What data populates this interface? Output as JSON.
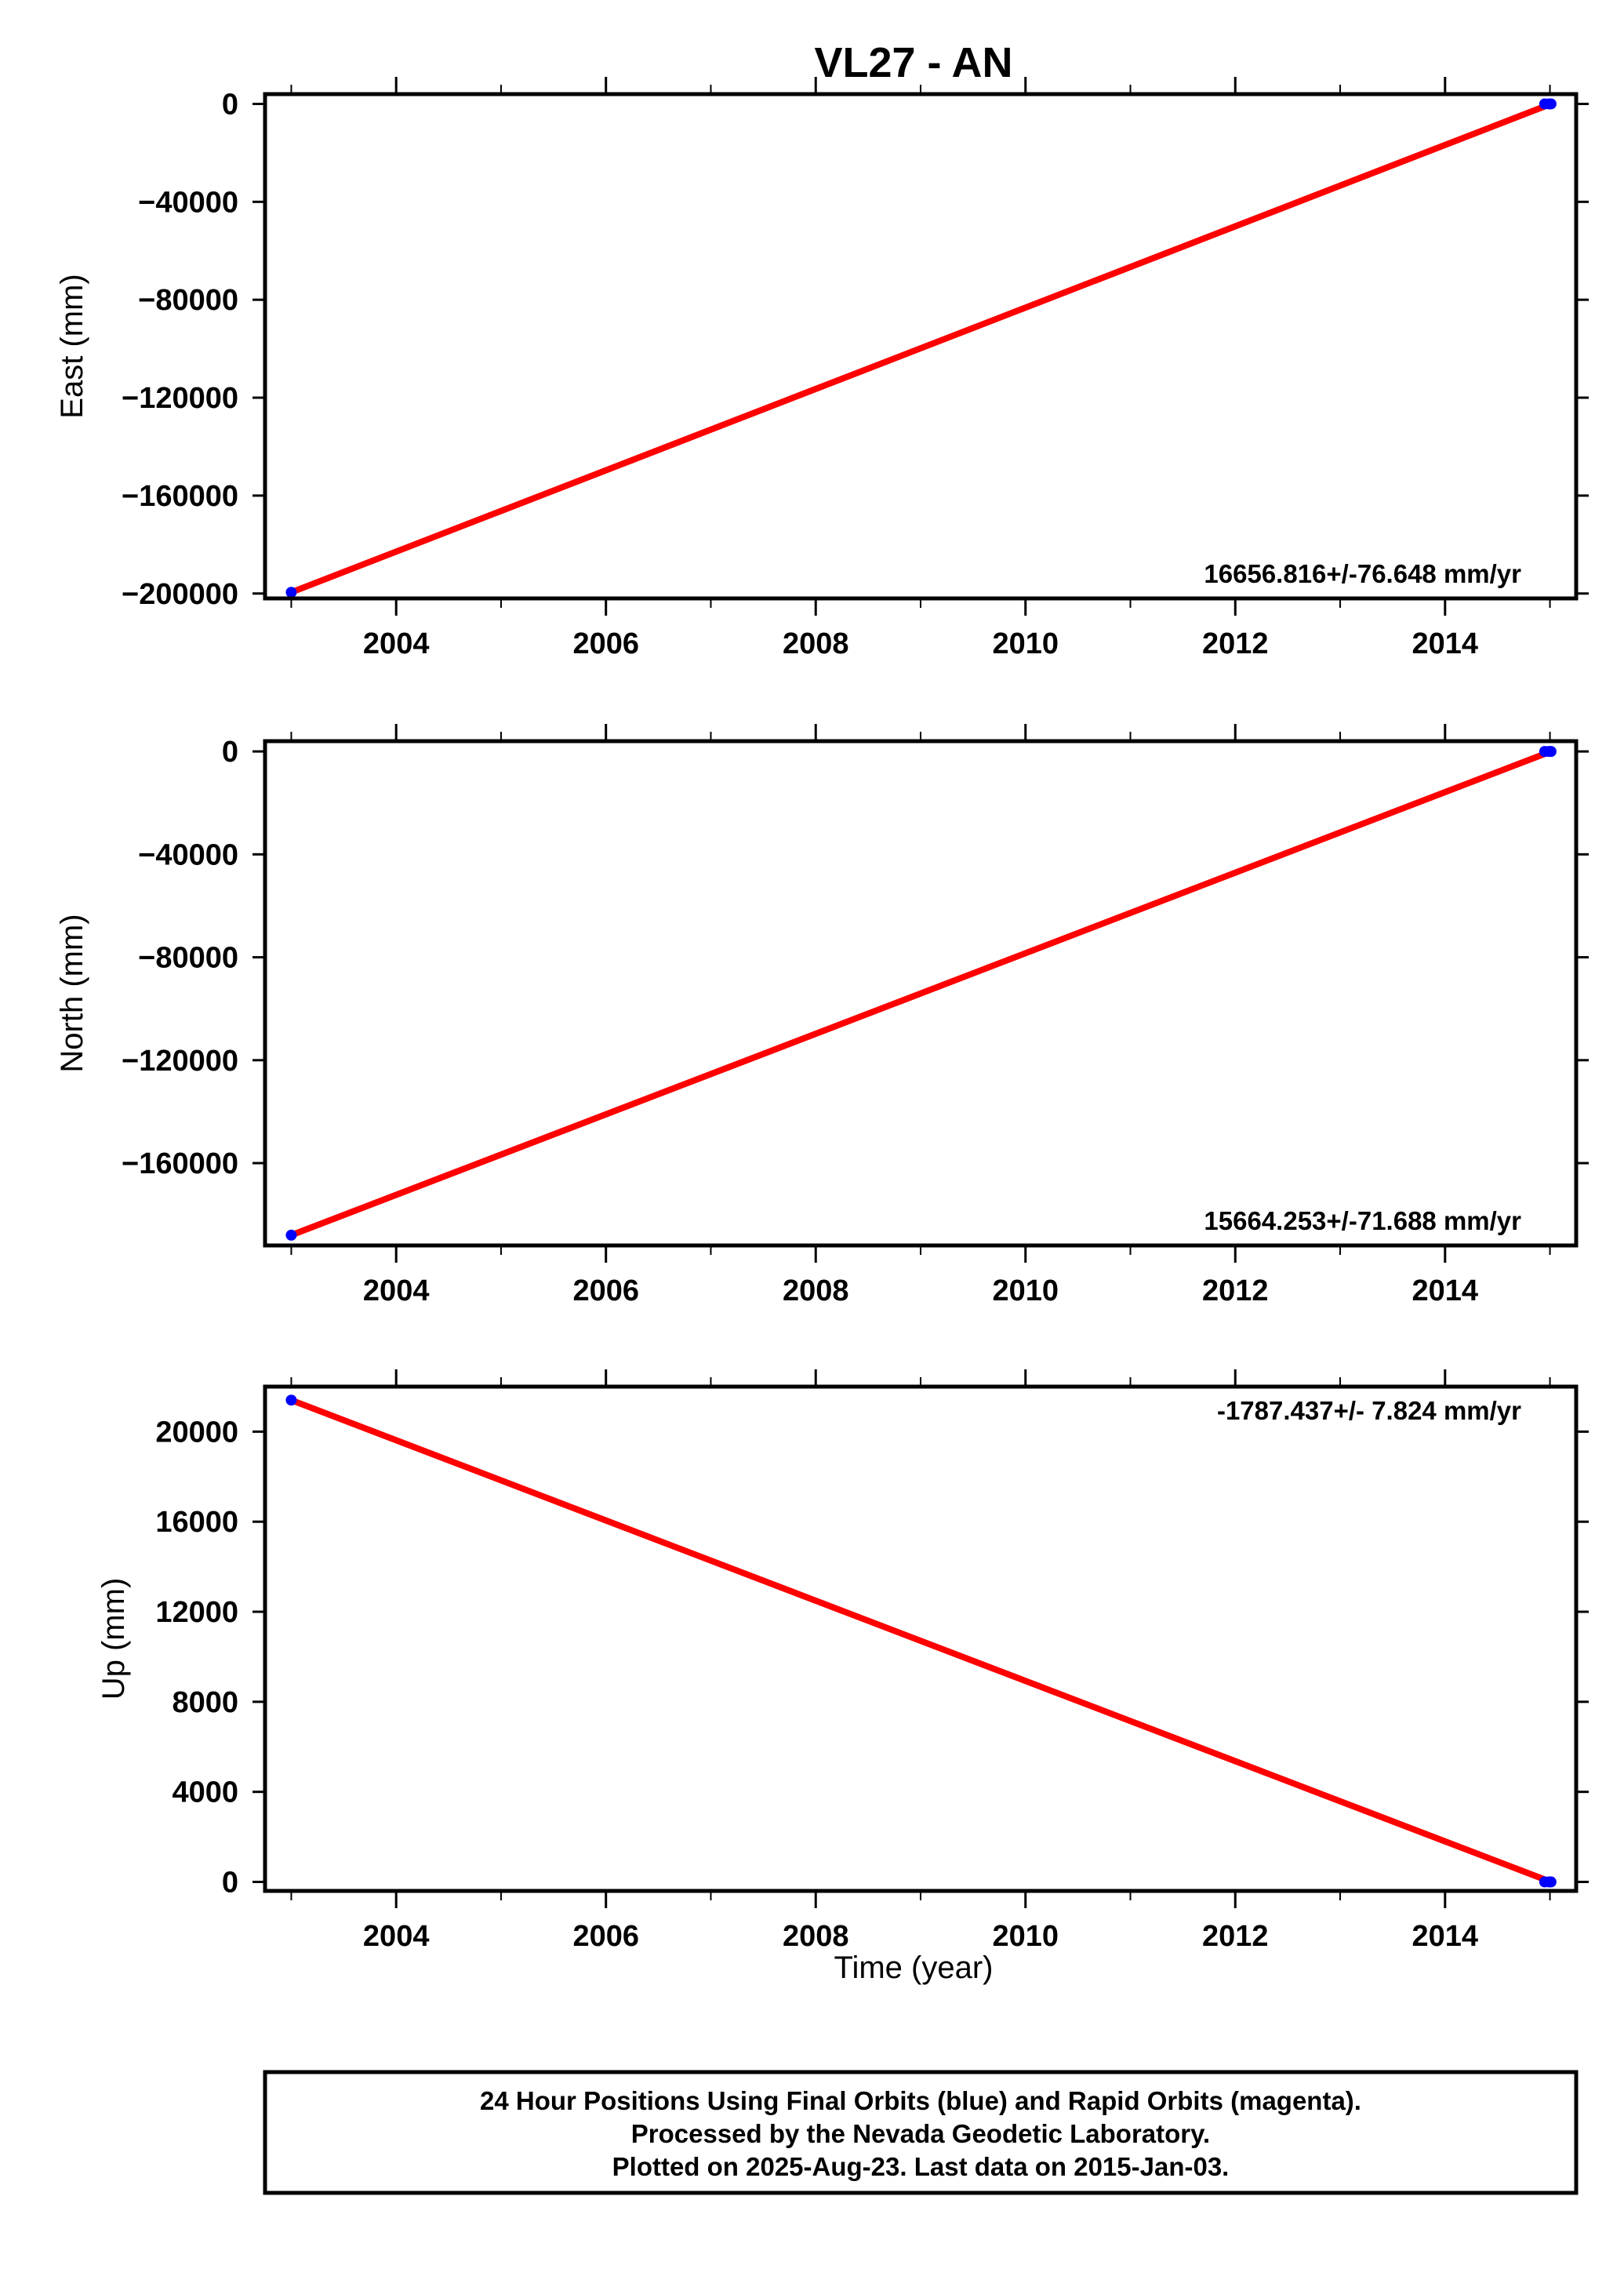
{
  "title": "VL27 - AN",
  "xlabel": "Time (year)",
  "footer": {
    "line1": "24 Hour Positions Using Final Orbits (blue) and Rapid Orbits (magenta).",
    "line2": "Processed by the Nevada Geodetic Laboratory.",
    "line3": "Plotted on 2025-Aug-23. Last data on 2015-Jan-03."
  },
  "colors": {
    "final_orbits": "#0000ff",
    "rapid_orbits": "#ff00ff",
    "trend_line": "#ff0000",
    "frame": "#000000"
  },
  "chart_data": [
    {
      "type": "line",
      "name": "east",
      "ylabel": "East (mm)",
      "rate_label": "16656.816+/-76.648 mm/yr",
      "xlim": [
        2002.75,
        2015.25
      ],
      "ylim": [
        -202000,
        4000
      ],
      "xticks": [
        2004,
        2006,
        2008,
        2010,
        2012,
        2014
      ],
      "yticks": [
        0,
        -40000,
        -80000,
        -120000,
        -160000,
        -200000
      ],
      "ytick_labels": [
        "0",
        "−40000",
        "−80000",
        "−120000",
        "−160000",
        "−200000"
      ],
      "points": [
        {
          "x": 2003.0,
          "y": -199500
        },
        {
          "x": 2014.95,
          "y": 0
        },
        {
          "x": 2014.99,
          "y": 0
        },
        {
          "x": 2015.01,
          "y": 0
        }
      ],
      "trend": [
        [
          2003.0,
          -199500
        ],
        [
          2015.01,
          0
        ]
      ]
    },
    {
      "type": "line",
      "name": "north",
      "ylabel": "North (mm)",
      "rate_label": "15664.253+/-71.688 mm/yr",
      "xlim": [
        2002.75,
        2015.25
      ],
      "ylim": [
        -192000,
        4000
      ],
      "xticks": [
        2004,
        2006,
        2008,
        2010,
        2012,
        2014
      ],
      "yticks": [
        0,
        -40000,
        -80000,
        -120000,
        -160000
      ],
      "ytick_labels": [
        "0",
        "−40000",
        "−80000",
        "−120000",
        "−160000"
      ],
      "points": [
        {
          "x": 2003.0,
          "y": -188000
        },
        {
          "x": 2014.95,
          "y": 0
        },
        {
          "x": 2014.99,
          "y": 0
        },
        {
          "x": 2015.01,
          "y": 0
        }
      ],
      "trend": [
        [
          2003.0,
          -188000
        ],
        [
          2015.01,
          0
        ]
      ]
    },
    {
      "type": "line",
      "name": "up",
      "ylabel": "Up (mm)",
      "rate_label": "-1787.437+/- 7.824 mm/yr",
      "xlim": [
        2002.75,
        2015.25
      ],
      "ylim": [
        -400,
        22000
      ],
      "xticks": [
        2004,
        2006,
        2008,
        2010,
        2012,
        2014
      ],
      "yticks": [
        0,
        4000,
        8000,
        12000,
        16000,
        20000
      ],
      "ytick_labels": [
        "0",
        "4000",
        "8000",
        "12000",
        "16000",
        "20000"
      ],
      "points": [
        {
          "x": 2003.0,
          "y": 21400
        },
        {
          "x": 2014.95,
          "y": 0
        },
        {
          "x": 2014.99,
          "y": 0
        },
        {
          "x": 2015.01,
          "y": 0
        }
      ],
      "trend": [
        [
          2003.0,
          21400
        ],
        [
          2015.01,
          0
        ]
      ]
    }
  ]
}
